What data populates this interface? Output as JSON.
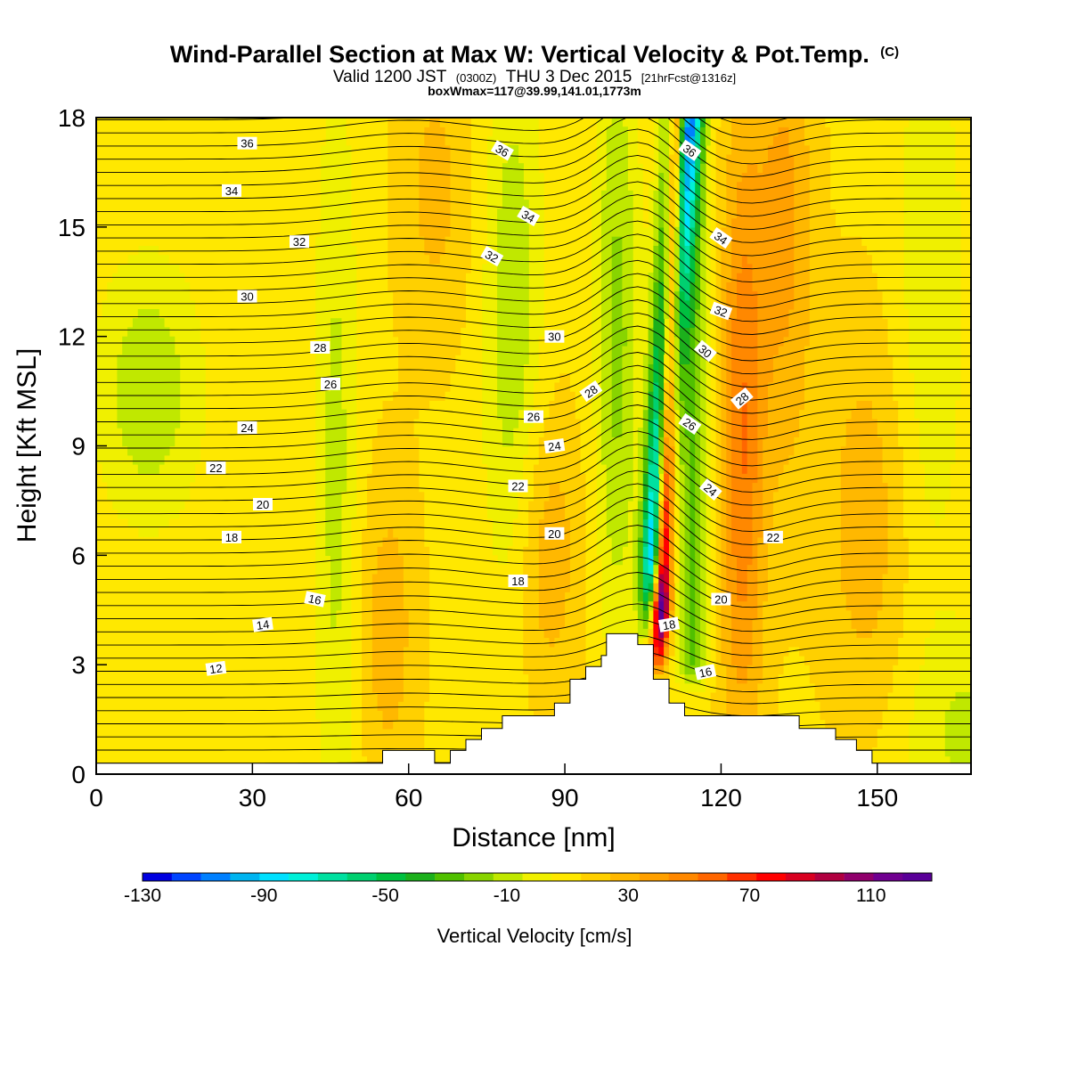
{
  "chart_data": {
    "type": "heatmap",
    "title": "Wind-Parallel Section at Max W: Vertical Velocity & Pot.Temp.",
    "title_mark": "(C)",
    "subtitle": {
      "prefix": "Valid 1200 JST",
      "utc": "(0300Z)",
      "date": "THU 3 Dec 2015",
      "forecast": "[21hrFcst@1316z]"
    },
    "subtitle2": "boxWmax=117@39.99,141.01,1773m",
    "xlabel": "Distance [nm]",
    "ylabel": "Height [Kft MSL]",
    "xlim": [
      0,
      168
    ],
    "ylim": [
      0,
      18
    ],
    "xticks": [
      0,
      30,
      60,
      90,
      120,
      150
    ],
    "yticks": [
      0,
      3,
      6,
      9,
      12,
      15,
      18
    ],
    "colorbar": {
      "label": "Vertical Velocity [cm/s]",
      "range": [
        -130,
        130
      ],
      "tick_values": [
        -130,
        -90,
        -50,
        -10,
        30,
        70,
        110
      ],
      "colors": [
        "#0000e0",
        "#0044ff",
        "#0080ff",
        "#00b4f0",
        "#00e0ff",
        "#00f0d8",
        "#00e0a0",
        "#00d070",
        "#00c040",
        "#1cb01c",
        "#50c000",
        "#88d400",
        "#c0e800",
        "#f0f000",
        "#ffe800",
        "#ffd000",
        "#ffb800",
        "#ffa000",
        "#ff8800",
        "#ff6600",
        "#ff3000",
        "#ff0000",
        "#d80020",
        "#b00040",
        "#90006c",
        "#700090",
        "#5a0098"
      ]
    },
    "contour_field": "potential temperature",
    "contour_levels": [
      12,
      14,
      16,
      18,
      20,
      22,
      24,
      26,
      28,
      30,
      32,
      34,
      36
    ],
    "contour_labels": [
      {
        "v": 36,
        "x": 29,
        "y": 17.3,
        "a": 0
      },
      {
        "v": 34,
        "x": 26,
        "y": 16.0,
        "a": 0
      },
      {
        "v": 32,
        "x": 39,
        "y": 14.6,
        "a": 0
      },
      {
        "v": 30,
        "x": 29,
        "y": 13.1,
        "a": 0
      },
      {
        "v": 28,
        "x": 43,
        "y": 11.7,
        "a": 0
      },
      {
        "v": 26,
        "x": 45,
        "y": 10.7,
        "a": 0
      },
      {
        "v": 24,
        "x": 29,
        "y": 9.5,
        "a": 0
      },
      {
        "v": 22,
        "x": 23,
        "y": 8.4,
        "a": 0
      },
      {
        "v": 20,
        "x": 32,
        "y": 7.4,
        "a": 0
      },
      {
        "v": 18,
        "x": 26,
        "y": 6.5,
        "a": 0
      },
      {
        "v": 16,
        "x": 42,
        "y": 4.8,
        "a": 12
      },
      {
        "v": 14,
        "x": 32,
        "y": 4.1,
        "a": -8
      },
      {
        "v": 12,
        "x": 23,
        "y": 2.9,
        "a": -8
      },
      {
        "v": 36,
        "x": 78,
        "y": 17.1,
        "a": 30
      },
      {
        "v": 34,
        "x": 83,
        "y": 15.3,
        "a": 30
      },
      {
        "v": 32,
        "x": 76,
        "y": 14.2,
        "a": 30
      },
      {
        "v": 30,
        "x": 88,
        "y": 12.0,
        "a": 0
      },
      {
        "v": 28,
        "x": 95,
        "y": 10.5,
        "a": -35
      },
      {
        "v": 26,
        "x": 84,
        "y": 9.8,
        "a": 0
      },
      {
        "v": 24,
        "x": 88,
        "y": 9.0,
        "a": -8
      },
      {
        "v": 22,
        "x": 81,
        "y": 7.9,
        "a": 0
      },
      {
        "v": 20,
        "x": 88,
        "y": 6.6,
        "a": 0
      },
      {
        "v": 18,
        "x": 81,
        "y": 5.3,
        "a": 0
      },
      {
        "v": 36,
        "x": 114,
        "y": 17.1,
        "a": 35
      },
      {
        "v": 34,
        "x": 120,
        "y": 14.7,
        "a": 35
      },
      {
        "v": 32,
        "x": 120,
        "y": 12.7,
        "a": 20
      },
      {
        "v": 30,
        "x": 117,
        "y": 11.6,
        "a": 40
      },
      {
        "v": 28,
        "x": 124,
        "y": 10.3,
        "a": -40
      },
      {
        "v": 26,
        "x": 114,
        "y": 9.6,
        "a": 35
      },
      {
        "v": 24,
        "x": 118,
        "y": 7.8,
        "a": 40
      },
      {
        "v": 22,
        "x": 130,
        "y": 6.5,
        "a": 0
      },
      {
        "v": 20,
        "x": 120,
        "y": 4.8,
        "a": 0
      },
      {
        "v": 18,
        "x": 110,
        "y": 4.1,
        "a": -10
      },
      {
        "v": 16,
        "x": 117,
        "y": 2.8,
        "a": -12
      }
    ],
    "terrain_profile": [
      [
        0,
        0.3
      ],
      [
        55,
        0.3
      ],
      [
        55,
        0.65
      ],
      [
        65,
        0.65
      ],
      [
        65,
        0.3
      ],
      [
        68,
        0.3
      ],
      [
        68,
        0.65
      ],
      [
        71,
        0.65
      ],
      [
        71,
        0.95
      ],
      [
        74,
        0.95
      ],
      [
        74,
        1.25
      ],
      [
        78,
        1.25
      ],
      [
        78,
        1.6
      ],
      [
        88,
        1.6
      ],
      [
        88,
        1.95
      ],
      [
        91,
        1.95
      ],
      [
        91,
        2.6
      ],
      [
        94,
        2.6
      ],
      [
        94,
        2.95
      ],
      [
        97,
        2.95
      ],
      [
        97,
        3.25
      ],
      [
        98,
        3.25
      ],
      [
        98,
        3.85
      ],
      [
        104,
        3.85
      ],
      [
        104,
        3.55
      ],
      [
        107,
        3.55
      ],
      [
        107,
        2.6
      ],
      [
        110,
        2.6
      ],
      [
        110,
        1.95
      ],
      [
        113,
        1.95
      ],
      [
        113,
        1.6
      ],
      [
        135,
        1.6
      ],
      [
        135,
        1.25
      ],
      [
        142,
        1.25
      ],
      [
        142,
        0.95
      ],
      [
        146,
        0.95
      ],
      [
        146,
        0.65
      ],
      [
        149,
        0.65
      ],
      [
        149,
        0.3
      ],
      [
        168,
        0.3
      ]
    ]
  }
}
